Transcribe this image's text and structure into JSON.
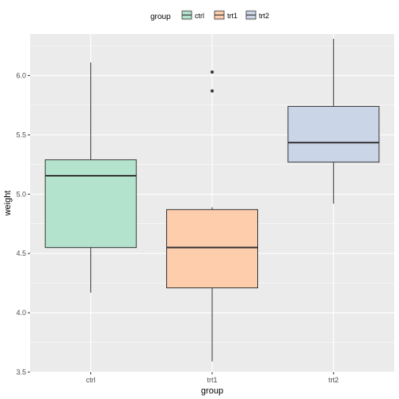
{
  "chart_data": {
    "type": "boxplot",
    "title": "",
    "xlabel": "group",
    "ylabel": "weight",
    "categories": [
      "ctrl",
      "trt1",
      "trt2"
    ],
    "ylim": [
      3.5,
      6.35
    ],
    "yticks": [
      3.5,
      4.0,
      4.5,
      5.0,
      5.5,
      6.0
    ],
    "ytick_labels": [
      "3.5",
      "4.0",
      "4.5",
      "5.0",
      "5.5",
      "6.0"
    ],
    "grid": true,
    "legend": {
      "title": "group",
      "placement": "top",
      "items": [
        "ctrl",
        "trt1",
        "trt2"
      ]
    },
    "colors": {
      "ctrl": "#b3e2cd",
      "trt1": "#fdcdac",
      "trt2": "#cbd5e8",
      "panel": "#ebebeb",
      "grid": "#ffffff",
      "outline": "#333333"
    },
    "boxes": [
      {
        "group": "ctrl",
        "whisker_low": 4.17,
        "q1": 4.55,
        "median": 5.155,
        "q3": 5.29,
        "whisker_high": 6.11,
        "outliers": []
      },
      {
        "group": "trt1",
        "whisker_low": 3.59,
        "q1": 4.21,
        "median": 4.55,
        "q3": 4.87,
        "whisker_high": 4.89,
        "outliers": [
          5.87,
          6.03
        ]
      },
      {
        "group": "trt2",
        "whisker_low": 4.92,
        "q1": 5.27,
        "median": 5.435,
        "q3": 5.74,
        "whisker_high": 6.31,
        "outliers": []
      }
    ]
  }
}
